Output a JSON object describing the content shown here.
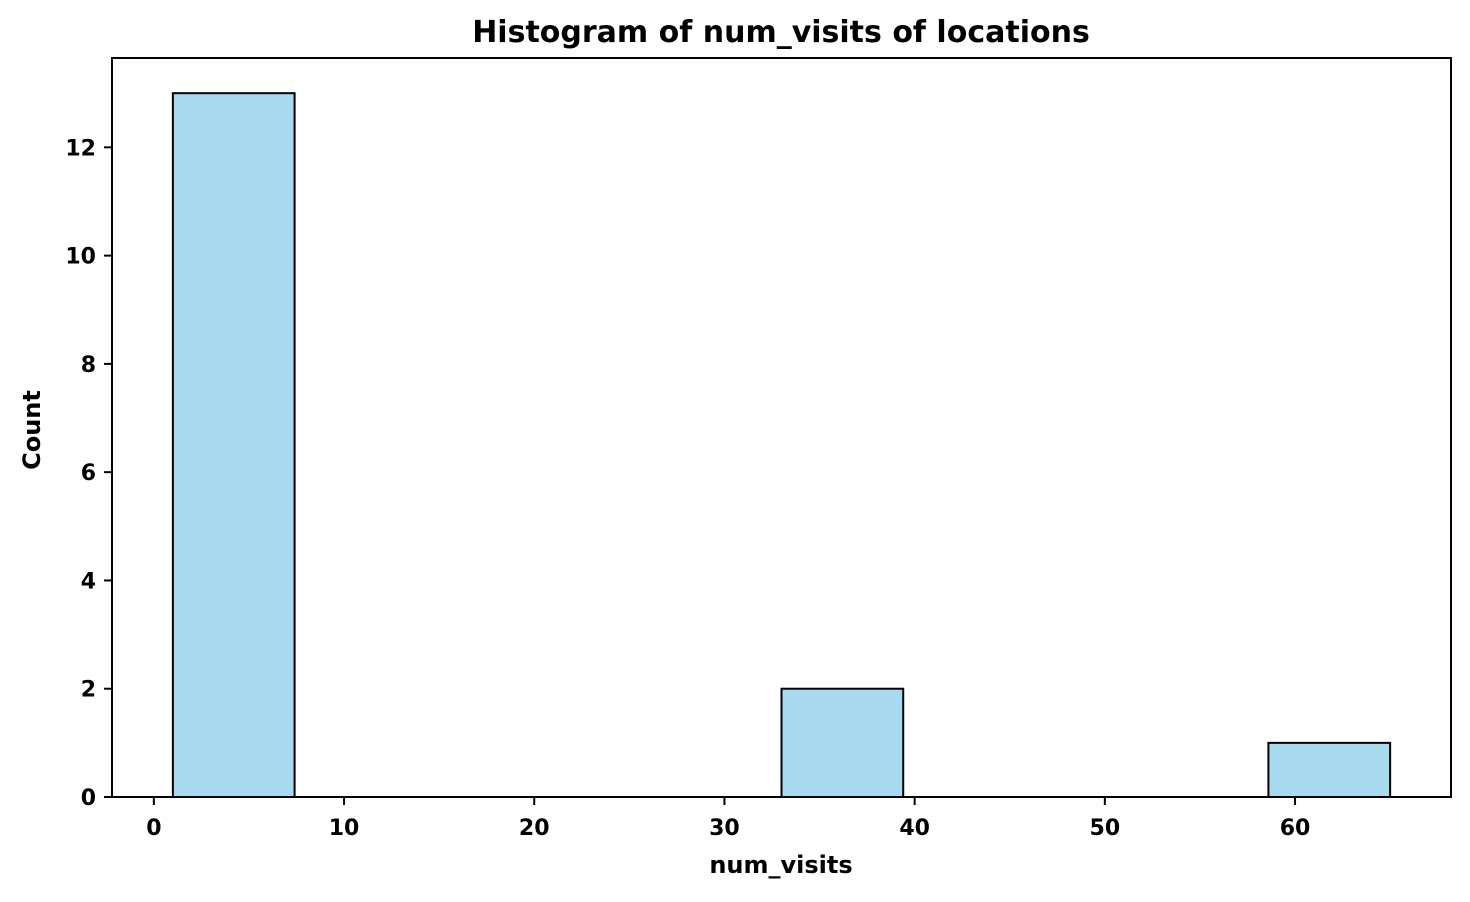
{
  "chart_data": {
    "type": "bar",
    "title": "Histogram of num_visits of locations",
    "xlabel": "num_visits",
    "ylabel": "Count",
    "xlim": [
      -2.2,
      68.2
    ],
    "ylim": [
      0,
      13.65
    ],
    "x_ticks": [
      0,
      10,
      20,
      30,
      40,
      50,
      60
    ],
    "y_ticks": [
      0,
      2,
      4,
      6,
      8,
      10,
      12
    ],
    "bins": [
      {
        "start": 1,
        "end": 7.4,
        "count": 13
      },
      {
        "start": 7.4,
        "end": 13.8,
        "count": 0
      },
      {
        "start": 13.8,
        "end": 20.2,
        "count": 0
      },
      {
        "start": 20.2,
        "end": 26.6,
        "count": 0
      },
      {
        "start": 26.6,
        "end": 33,
        "count": 0
      },
      {
        "start": 33,
        "end": 39.4,
        "count": 2
      },
      {
        "start": 39.4,
        "end": 45.8,
        "count": 0
      },
      {
        "start": 45.8,
        "end": 52.2,
        "count": 0
      },
      {
        "start": 52.2,
        "end": 58.6,
        "count": 0
      },
      {
        "start": 58.6,
        "end": 65,
        "count": 1
      }
    ],
    "bar_color": "#a7d9ef",
    "edge_color": "#000000",
    "grid": false,
    "legend": "none"
  }
}
